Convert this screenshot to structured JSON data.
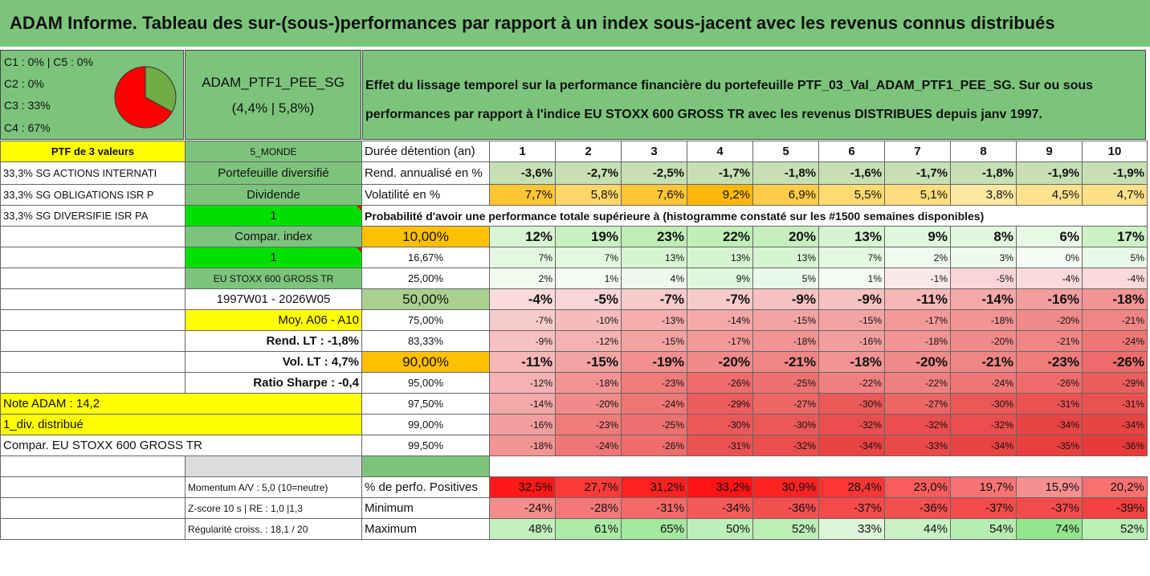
{
  "title": "ADAM Informe. Tableau des sur-(sous-)performances par rapport à un index sous-jacent avec les revenus connus distribués",
  "classes": [
    "C1 : 0% | C5 : 0%",
    "C2 : 0%",
    "C3 : 33%",
    "C4 : 67%"
  ],
  "pie": {
    "green_pct": 33,
    "red_pct": 67,
    "green_color": "#70ad47",
    "red_color": "#ff0000"
  },
  "portfolio": {
    "name": "ADAM_PTF1_PEE_SG",
    "perf": "(4,4% | 5,8%)"
  },
  "description": "Effet du lissage temporel sur la performance financière du portefeuille PTF_03_Val_ADAM_PTF1_PEE_SG. Sur ou sous performances par rapport à l'indice EU STOXX 600 GROSS TR avec les revenus DISTRIBUES depuis janv 1997.",
  "left_col": [
    "PTF de 3 valeurs",
    "33,3% SG ACTIONS INTERNATI",
    "33,3% SG OBLIGATIONS ISR P",
    "33,3% SG DIVERSIFIE ISR PA"
  ],
  "mid_col": {
    "monde": "5_MONDE",
    "diversifie": "Portefeuille diversifié",
    "dividende": "Dividende",
    "one_a": "1",
    "compar_index": "Compar. index",
    "one_b": "1",
    "index_name": "EU STOXX 600 GROSS TR",
    "period": "1997W01 - 2026W05",
    "moy": "Moy. A06 - A10",
    "rend_lt": "Rend. LT : -1,8%",
    "vol_lt": "Vol. LT : 4,7%",
    "sharpe": "Ratio Sharpe : -0,4",
    "note": "Note ADAM : 14,2",
    "div": "1_div. distribué",
    "compar": "Compar. EU STOXX 600 GROSS TR",
    "momentum": "Momentum A/V : 5,0 (10=neutre)",
    "zscore": "Z-score 10 s | RE : 1,0 |1,3",
    "regularite": "Régularité croiss. : 18,1 / 20"
  },
  "header": {
    "label": "Durée détention (an)",
    "years": [
      "1",
      "2",
      "3",
      "4",
      "5",
      "6",
      "7",
      "8",
      "9",
      "10"
    ]
  },
  "rend": {
    "label": "Rend. annualisé en %",
    "values": [
      "-3,6%",
      "-2,7%",
      "-2,5%",
      "-1,7%",
      "-1,8%",
      "-1,6%",
      "-1,7%",
      "-1,8%",
      "-1,9%",
      "-1,9%"
    ]
  },
  "vol": {
    "label": "Volatilité en %",
    "values": [
      "7,7%",
      "5,8%",
      "7,6%",
      "9,2%",
      "6,9%",
      "5,5%",
      "5,1%",
      "3,8%",
      "4,5%",
      "4,7%"
    ]
  },
  "proba_label": "Probabilité d'avoir une performance totale supérieure à (histogramme constaté sur les #1500 semaines disponibles)",
  "proba_rows": [
    {
      "p": "10,00%",
      "values": [
        "12%",
        "19%",
        "23%",
        "22%",
        "20%",
        "13%",
        "9%",
        "8%",
        "6%",
        "17%"
      ]
    },
    {
      "p": "16,67%",
      "values": [
        "7%",
        "7%",
        "13%",
        "13%",
        "13%",
        "7%",
        "2%",
        "3%",
        "0%",
        "5%"
      ]
    },
    {
      "p": "25,00%",
      "values": [
        "2%",
        "1%",
        "4%",
        "9%",
        "5%",
        "1%",
        "-1%",
        "-5%",
        "-4%",
        "-4%"
      ]
    },
    {
      "p": "50,00%",
      "values": [
        "-4%",
        "-5%",
        "-7%",
        "-7%",
        "-9%",
        "-9%",
        "-11%",
        "-14%",
        "-16%",
        "-18%"
      ]
    },
    {
      "p": "75,00%",
      "values": [
        "-7%",
        "-10%",
        "-13%",
        "-14%",
        "-15%",
        "-15%",
        "-17%",
        "-18%",
        "-20%",
        "-21%"
      ]
    },
    {
      "p": "83,33%",
      "values": [
        "-9%",
        "-12%",
        "-15%",
        "-17%",
        "-18%",
        "-16%",
        "-18%",
        "-20%",
        "-21%",
        "-24%"
      ]
    },
    {
      "p": "90,00%",
      "values": [
        "-11%",
        "-15%",
        "-19%",
        "-20%",
        "-21%",
        "-18%",
        "-20%",
        "-21%",
        "-23%",
        "-26%"
      ]
    },
    {
      "p": "95,00%",
      "values": [
        "-12%",
        "-18%",
        "-23%",
        "-26%",
        "-25%",
        "-22%",
        "-22%",
        "-24%",
        "-26%",
        "-29%"
      ]
    },
    {
      "p": "97,50%",
      "values": [
        "-14%",
        "-20%",
        "-24%",
        "-29%",
        "-27%",
        "-30%",
        "-27%",
        "-30%",
        "-31%",
        "-31%"
      ]
    },
    {
      "p": "99,00%",
      "values": [
        "-16%",
        "-23%",
        "-25%",
        "-30%",
        "-30%",
        "-32%",
        "-32%",
        "-32%",
        "-34%",
        "-34%"
      ]
    },
    {
      "p": "99,50%",
      "values": [
        "-18%",
        "-24%",
        "-26%",
        "-31%",
        "-32%",
        "-34%",
        "-33%",
        "-34%",
        "-35%",
        "-36%"
      ]
    }
  ],
  "positives": {
    "label": "% de perfo. Positives",
    "values": [
      "32,5%",
      "27,7%",
      "31,2%",
      "33,2%",
      "30,9%",
      "28,4%",
      "23,0%",
      "19,7%",
      "15,9%",
      "20,2%"
    ]
  },
  "minimum": {
    "label": "Minimum",
    "values": [
      "-24%",
      "-28%",
      "-31%",
      "-34%",
      "-36%",
      "-37%",
      "-36%",
      "-37%",
      "-37%",
      "-39%"
    ]
  },
  "maximum": {
    "label": "Maximum",
    "values": [
      "48%",
      "61%",
      "65%",
      "50%",
      "52%",
      "33%",
      "44%",
      "54%",
      "74%",
      "52%"
    ]
  }
}
